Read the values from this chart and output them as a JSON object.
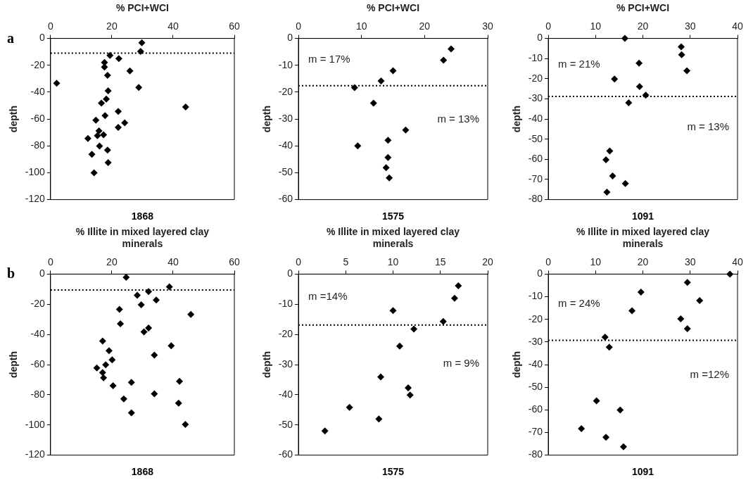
{
  "chart_data": [
    {
      "type": "scatter",
      "xlabel": "% PCI+WCI",
      "ylabel": "depth",
      "subtitle": "1868",
      "annotations": [
        "a"
      ],
      "marker": "diamond",
      "grid": false,
      "xlim": [
        0,
        60
      ],
      "xticks": [
        0,
        20,
        40,
        60
      ],
      "ylim": [
        -120,
        0
      ],
      "yticks": [
        -120,
        -100,
        -80,
        -60,
        -40,
        -20,
        0
      ],
      "ref_lines": [
        {
          "axis": "y",
          "value": -11,
          "line_style": "dotted",
          "color": "#000000"
        }
      ],
      "series": [
        {
          "color": "#000000",
          "x": [
            29.8,
            29.4,
            19.4,
            22.3,
            17.6,
            17.6,
            25.9,
            18.6,
            2.0,
            28.8,
            18.8,
            18.2,
            16.6,
            44.1,
            22.1,
            17.8,
            14.8,
            24.2,
            22.1,
            15.8,
            17.3,
            15.3,
            12.2,
            16.0,
            18.6,
            13.5,
            18.8,
            14.2
          ],
          "values": [
            -3.2,
            -9.6,
            -12.6,
            -15,
            -17.9,
            -21.3,
            -24.2,
            -27.4,
            -33.4,
            -36.5,
            -39,
            -45.1,
            -48.2,
            -51.1,
            -54.3,
            -57.4,
            -60.8,
            -62.8,
            -66.2,
            -68.8,
            -71.7,
            -72.4,
            -74.5,
            -80.1,
            -83.2,
            -86.3,
            -92.4,
            -100
          ]
        }
      ]
    },
    {
      "type": "scatter",
      "xlabel": "% PCI+WCI",
      "ylabel": "depth",
      "subtitle": "1575",
      "annotations": [
        "m = 17%",
        "m = 13%"
      ],
      "marker": "diamond",
      "grid": false,
      "xlim": [
        0,
        30
      ],
      "xticks": [
        0,
        10,
        20,
        30
      ],
      "ylim": [
        -60,
        0
      ],
      "yticks": [
        -60,
        -50,
        -40,
        -30,
        -20,
        -10,
        0
      ],
      "ref_lines": [
        {
          "axis": "y",
          "value": -17.6,
          "line_style": "dotted",
          "color": "#000000"
        }
      ],
      "series": [
        {
          "color": "#000000",
          "x": [
            24.2,
            23.0,
            15.0,
            13.1,
            8.9,
            11.9,
            17.0,
            14.2,
            9.4,
            14.2,
            13.9,
            14.4
          ],
          "values": [
            -3.9,
            -8.1,
            -12.0,
            -15.8,
            -18.3,
            -24.1,
            -34.1,
            -37.9,
            -40,
            -44.3,
            -48.1,
            -51.9
          ]
        }
      ]
    },
    {
      "type": "scatter",
      "xlabel": "% PCI+WCI",
      "ylabel": "depth",
      "subtitle": "1091",
      "annotations": [
        "m = 21%",
        "m = 13%"
      ],
      "marker": "diamond",
      "grid": false,
      "xlim": [
        0,
        40
      ],
      "xticks": [
        0,
        10,
        20,
        30,
        40
      ],
      "ylim": [
        -80,
        0
      ],
      "yticks": [
        -80,
        -70,
        -60,
        -50,
        -40,
        -30,
        -20,
        -10,
        0
      ],
      "ref_lines": [
        {
          "axis": "y",
          "value": -28.8,
          "line_style": "dotted",
          "color": "#000000"
        }
      ],
      "series": [
        {
          "color": "#000000",
          "x": [
            16.2,
            28.1,
            28.2,
            29.3,
            19.2,
            14.0,
            19.3,
            20.6,
            17.0,
            13.0,
            12.2,
            13.6,
            16.3,
            12.4
          ],
          "values": [
            0,
            -4.2,
            -8.1,
            -16,
            -12.3,
            -20.1,
            -23.9,
            -28.2,
            -31.9,
            -55.9,
            -60.2,
            -68.3,
            -72,
            -76.3
          ]
        }
      ]
    },
    {
      "type": "scatter",
      "xlabel": "% Illite in mixed layered clay minerals",
      "ylabel": "depth",
      "subtitle": "1868",
      "annotations": [
        "b"
      ],
      "marker": "diamond",
      "grid": false,
      "xlim": [
        0,
        60
      ],
      "xticks": [
        0,
        20,
        40,
        60
      ],
      "ylim": [
        -120,
        0
      ],
      "yticks": [
        -120,
        -100,
        -80,
        -60,
        -40,
        -20,
        0
      ],
      "ref_lines": [
        {
          "axis": "y",
          "value": -10.5,
          "line_style": "dotted",
          "color": "#000000"
        }
      ],
      "series": [
        {
          "color": "#000000",
          "x": [
            24.7,
            38.8,
            32.0,
            28.3,
            34.5,
            29.6,
            22.5,
            45.8,
            22.8,
            32.0,
            30.5,
            17.0,
            39.4,
            19.1,
            33.9,
            20.1,
            18.0,
            15.1,
            17.0,
            17.3,
            42.1,
            26.4,
            20.4,
            33.9,
            23.9,
            41.8,
            26.4,
            44.0
          ],
          "values": [
            -2.1,
            -8.5,
            -11.6,
            -14,
            -17.2,
            -20.3,
            -23.4,
            -26.7,
            -32.9,
            -35.7,
            -38.3,
            -44.4,
            -47.5,
            -50.8,
            -53.7,
            -56.8,
            -60.1,
            -62.2,
            -65.2,
            -68.8,
            -71.1,
            -71.8,
            -74,
            -79.4,
            -82.7,
            -85.6,
            -92,
            -99.7
          ]
        }
      ]
    },
    {
      "type": "scatter",
      "xlabel": "% Illite in mixed layered clay minerals",
      "ylabel": "depth",
      "subtitle": "1575",
      "annotations": [
        "m =14%",
        "m = 9%"
      ],
      "marker": "diamond",
      "grid": false,
      "xlim": [
        0,
        20
      ],
      "xticks": [
        0,
        5,
        10,
        15,
        20
      ],
      "ylim": [
        -60,
        0
      ],
      "yticks": [
        -60,
        -50,
        -40,
        -30,
        -20,
        -10,
        0
      ],
      "ref_lines": [
        {
          "axis": "y",
          "value": -16.9,
          "line_style": "dotted",
          "color": "#000000"
        }
      ],
      "series": [
        {
          "color": "#000000",
          "x": [
            16.9,
            16.5,
            10.0,
            15.3,
            12.2,
            10.7,
            8.7,
            11.6,
            11.8,
            5.4,
            8.5,
            2.8
          ],
          "values": [
            -3.9,
            -8.0,
            -12.1,
            -15.7,
            -18.2,
            -23.9,
            -34.1,
            -37.7,
            -40.1,
            -44.2,
            -48.0,
            -52
          ]
        }
      ]
    },
    {
      "type": "scatter",
      "xlabel": "% Illite in mixed layered clay minerals",
      "ylabel": "depth",
      "subtitle": "1091",
      "annotations": [
        "m = 24%",
        "m =12%"
      ],
      "marker": "diamond",
      "grid": false,
      "xlim": [
        0,
        40
      ],
      "xticks": [
        0,
        10,
        20,
        30,
        40
      ],
      "ylim": [
        -80,
        0
      ],
      "yticks": [
        -80,
        -70,
        -60,
        -50,
        -40,
        -30,
        -20,
        -10,
        0
      ],
      "ref_lines": [
        {
          "axis": "y",
          "value": -29.3,
          "line_style": "dotted",
          "color": "#000000"
        }
      ],
      "series": [
        {
          "color": "#000000",
          "x": [
            38.4,
            29.4,
            19.6,
            32.0,
            17.7,
            28.0,
            29.4,
            12.0,
            12.9,
            10.2,
            15.2,
            7.0,
            12.2,
            15.9
          ],
          "values": [
            0,
            -3.7,
            -8.0,
            -11.7,
            -16.2,
            -19.8,
            -24.1,
            -27.9,
            -32.3,
            -56,
            -60.1,
            -68.3,
            -72.1,
            -76.3
          ]
        }
      ]
    }
  ]
}
